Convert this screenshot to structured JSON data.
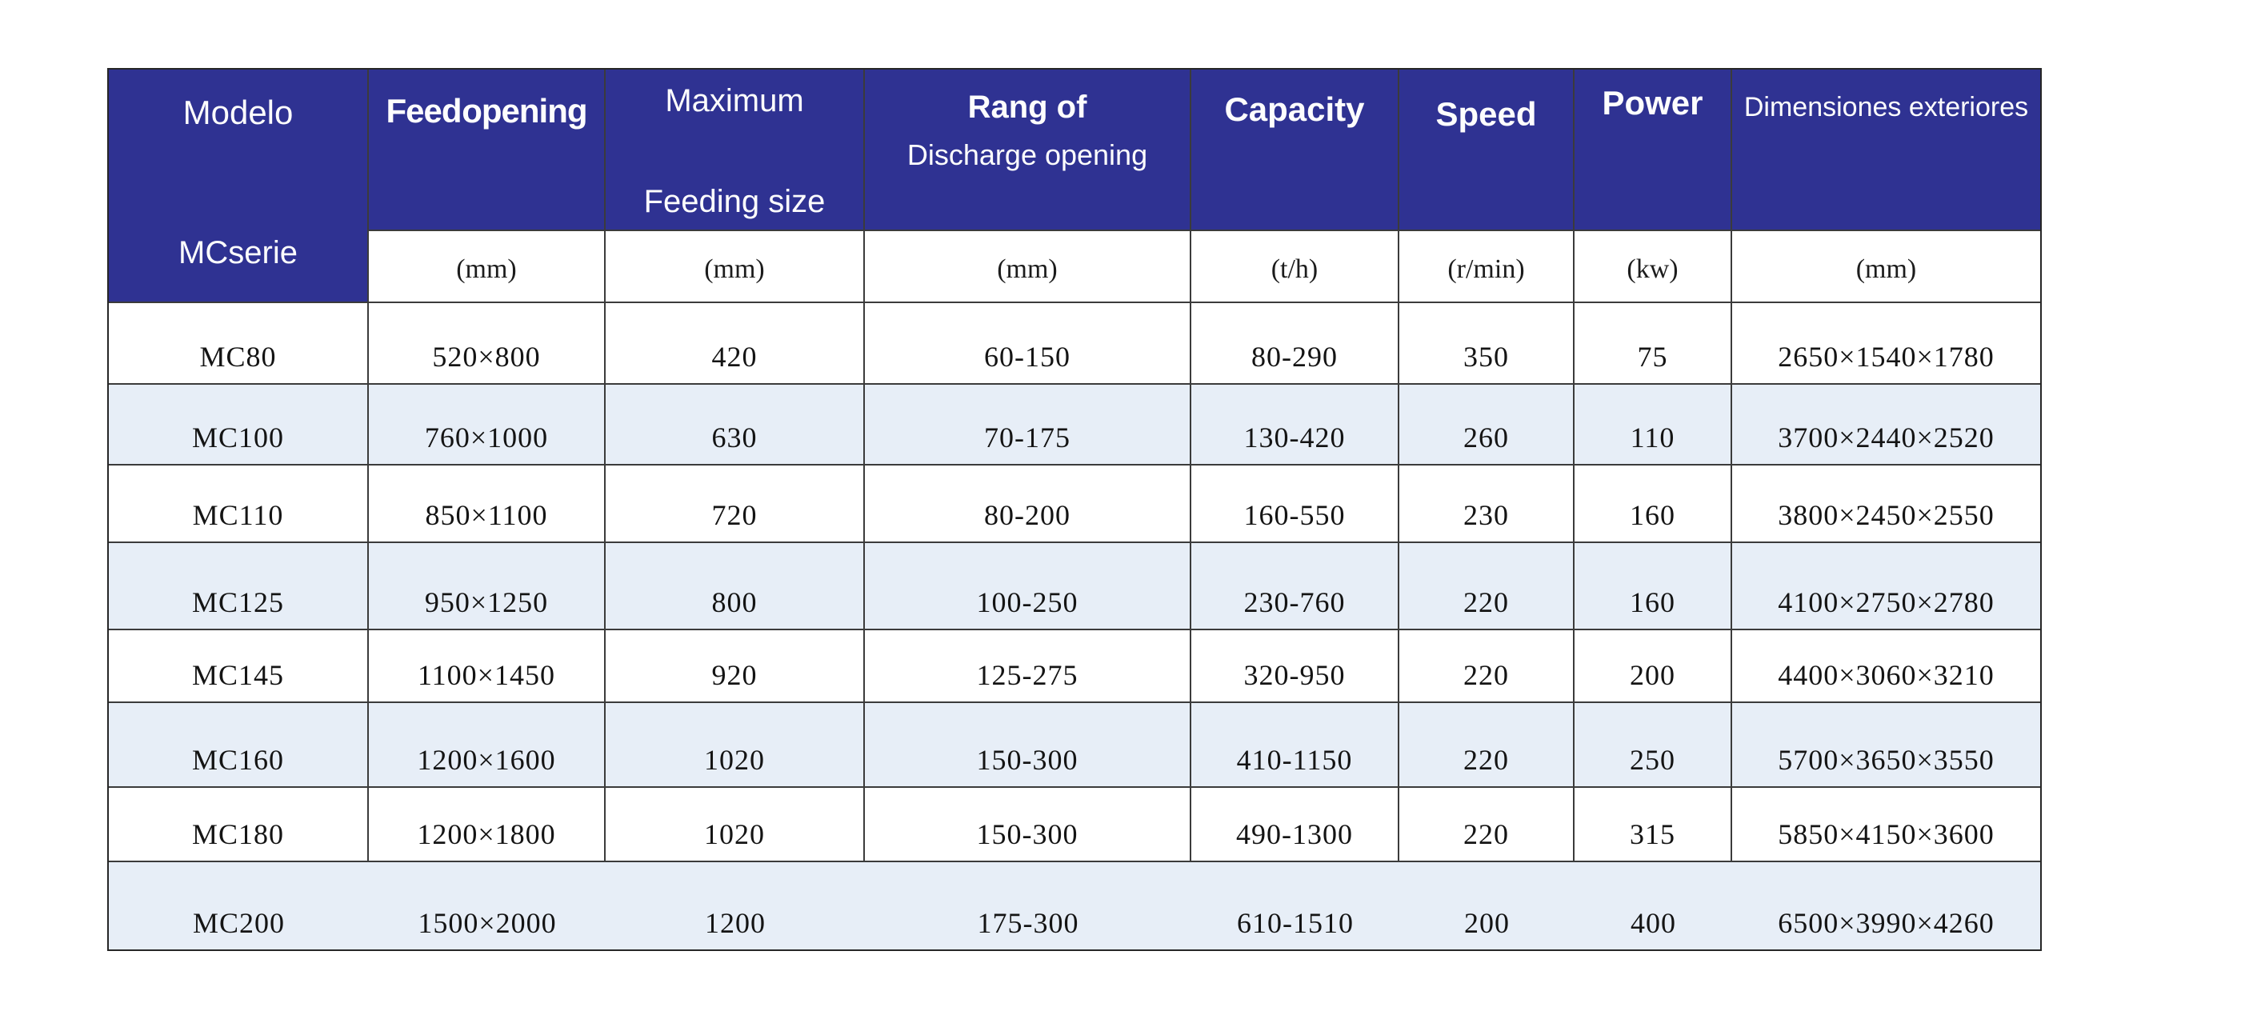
{
  "colors": {
    "header_bg": "#2f3292",
    "stripe_bg": "#e7eef7",
    "grid_line": "#3b3b3b",
    "outer_border": "#262626",
    "header_text": "#ffffff",
    "data_text": "#141414"
  },
  "table": {
    "header": {
      "model_title": "Modelo",
      "model_subtitle": "MCserie",
      "columns": [
        {
          "id": "feed_opening",
          "lines": [
            "Feed opening"
          ],
          "unit": "(mm)"
        },
        {
          "id": "max_feeding_size",
          "lines": [
            "Maximum",
            "Feeding size"
          ],
          "unit": "(mm)"
        },
        {
          "id": "discharge_opening",
          "lines": [
            "Rang of",
            "Discharge opening"
          ],
          "unit": "(mm)"
        },
        {
          "id": "capacity",
          "lines": [
            "Capacity"
          ],
          "unit": "(t/h)"
        },
        {
          "id": "speed",
          "lines": [
            "Speed"
          ],
          "unit": "(r/min)"
        },
        {
          "id": "power",
          "lines": [
            "Power"
          ],
          "unit": "(kw)"
        },
        {
          "id": "dimensions",
          "lines": [
            "Dimensiones exteriores"
          ],
          "unit": "(mm)"
        }
      ]
    },
    "rows": [
      {
        "model": "MC80",
        "feed_opening": "520×800",
        "max_feeding_size": "420",
        "discharge_opening": "60-150",
        "capacity": "80-290",
        "speed": "350",
        "power": "75",
        "dimensions": "2650×1540×1780"
      },
      {
        "model": "MC100",
        "feed_opening": "760×1000",
        "max_feeding_size": "630",
        "discharge_opening": "70-175",
        "capacity": "130-420",
        "speed": "260",
        "power": "110",
        "dimensions": "3700×2440×2520"
      },
      {
        "model": "MC110",
        "feed_opening": "850×1100",
        "max_feeding_size": "720",
        "discharge_opening": "80-200",
        "capacity": "160-550",
        "speed": "230",
        "power": "160",
        "dimensions": "3800×2450×2550"
      },
      {
        "model": "MC125",
        "feed_opening": "950×1250",
        "max_feeding_size": "800",
        "discharge_opening": "100-250",
        "capacity": "230-760",
        "speed": "220",
        "power": "160",
        "dimensions": "4100×2750×2780"
      },
      {
        "model": "MC145",
        "feed_opening": "1100×1450",
        "max_feeding_size": "920",
        "discharge_opening": "125-275",
        "capacity": "320-950",
        "speed": "220",
        "power": "200",
        "dimensions": "4400×3060×3210"
      },
      {
        "model": "MC160",
        "feed_opening": "1200×1600",
        "max_feeding_size": "1020",
        "discharge_opening": "150-300",
        "capacity": "410-1150",
        "speed": "220",
        "power": "250",
        "dimensions": "5700×3650×3550"
      },
      {
        "model": "MC180",
        "feed_opening": "1200×1800",
        "max_feeding_size": "1020",
        "discharge_opening": "150-300",
        "capacity": "490-1300",
        "speed": "220",
        "power": "315",
        "dimensions": "5850×4150×3600"
      },
      {
        "model": "MC200",
        "feed_opening": "1500×2000",
        "max_feeding_size": "1200",
        "discharge_opening": "175-300",
        "capacity": "610-1510",
        "speed": "200",
        "power": "400",
        "dimensions": "6500×3990×4260"
      }
    ]
  }
}
